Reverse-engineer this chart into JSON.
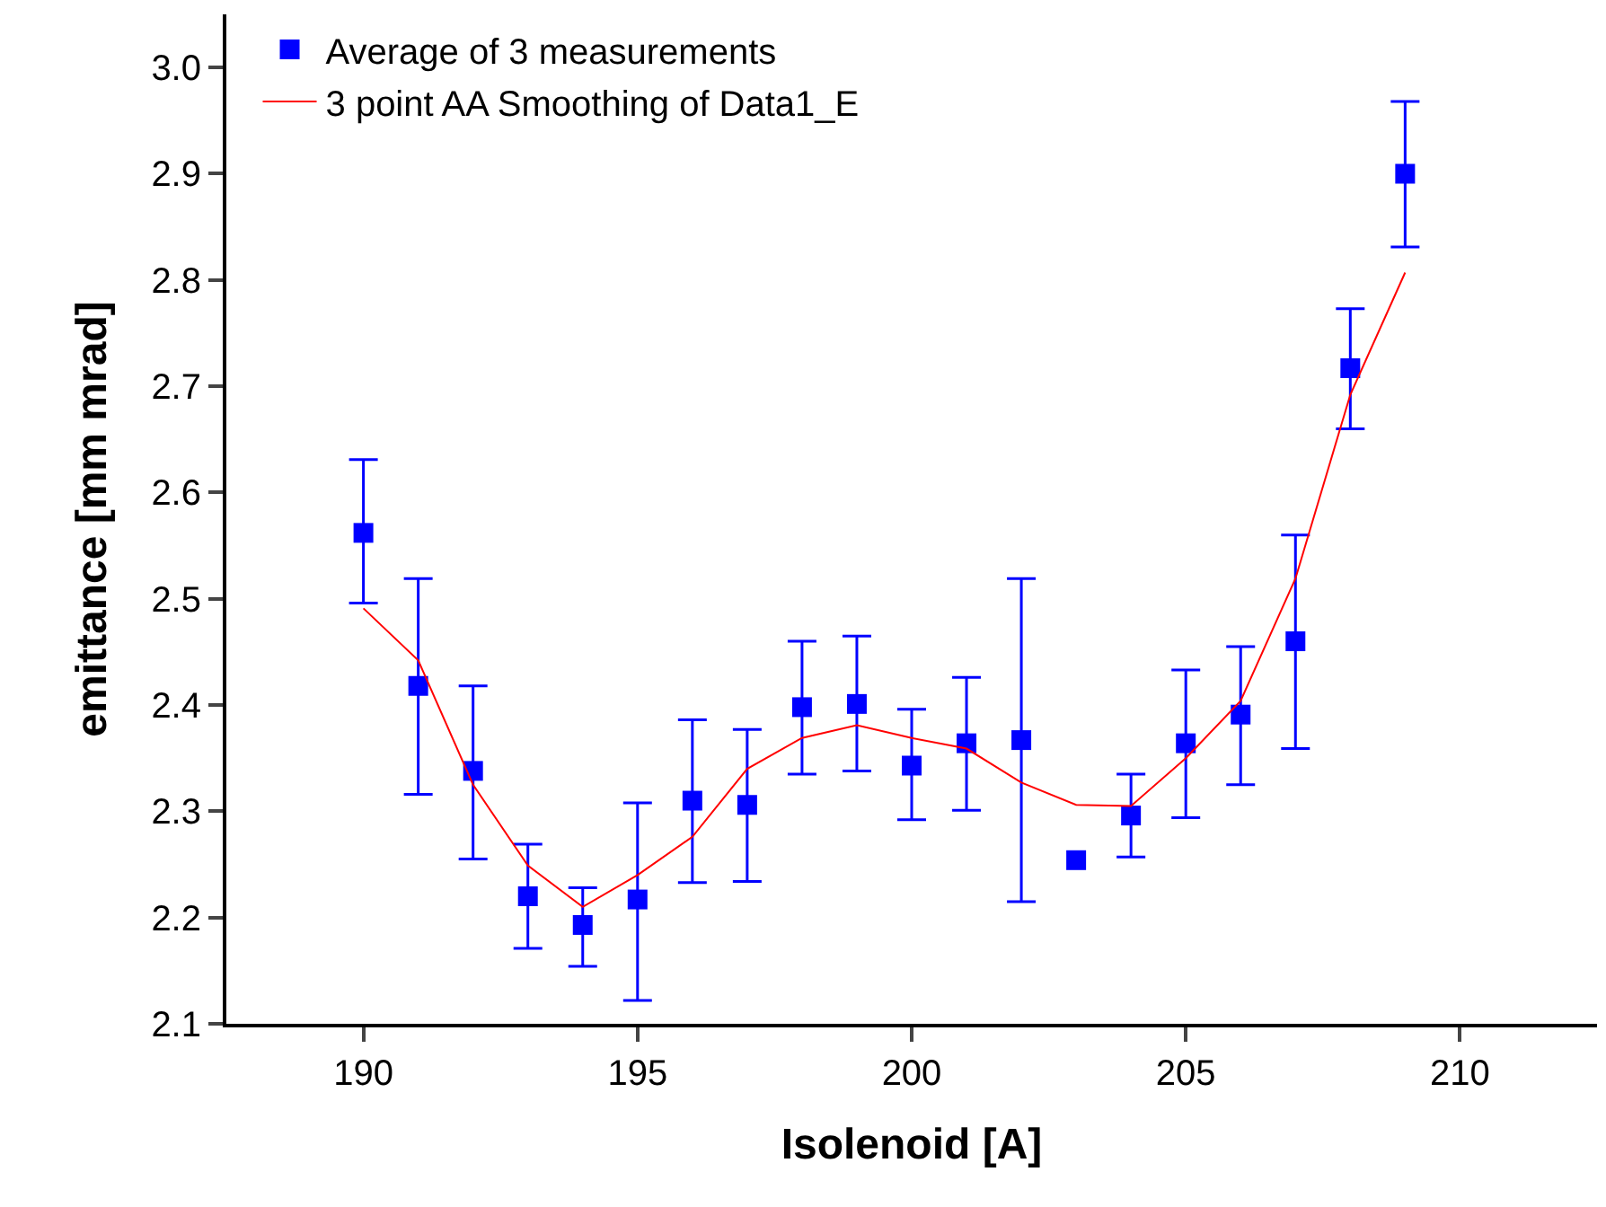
{
  "chart_data": {
    "type": "scatter",
    "xlabel": "Isolenoid [A]",
    "ylabel": "emittance [mm mrad]",
    "x": [
      190,
      191,
      192,
      193,
      194,
      195,
      196,
      197,
      198,
      199,
      200,
      201,
      202,
      203,
      204,
      205,
      206,
      207,
      208,
      209
    ],
    "series": [
      {
        "name": "Average of 3 measurements",
        "marker": "square",
        "color": "#0000ff",
        "values": [
          2.562,
          2.418,
          2.338,
          2.22,
          2.193,
          2.217,
          2.31,
          2.306,
          2.398,
          2.401,
          2.343,
          2.364,
          2.367,
          2.254,
          2.296,
          2.364,
          2.391,
          2.46,
          2.717,
          2.9
        ],
        "errors": [
          [
            2.496,
            2.631
          ],
          [
            2.316,
            2.519
          ],
          [
            2.255,
            2.418
          ],
          [
            2.171,
            2.269
          ],
          [
            2.154,
            2.228
          ],
          [
            2.122,
            2.308
          ],
          [
            2.233,
            2.386
          ],
          [
            2.234,
            2.377
          ],
          [
            2.335,
            2.46
          ],
          [
            2.338,
            2.465
          ],
          [
            2.292,
            2.396
          ],
          [
            2.301,
            2.426
          ],
          [
            2.215,
            2.519
          ],
          null,
          [
            2.257,
            2.335
          ],
          [
            2.294,
            2.433
          ],
          [
            2.325,
            2.455
          ],
          [
            2.359,
            2.56
          ],
          [
            2.66,
            2.773
          ],
          [
            2.831,
            2.968
          ]
        ]
      },
      {
        "name": "3 point AA Smoothing of Data1_E",
        "type": "line",
        "marker": "none",
        "color": "#ff0000",
        "values": [
          2.491,
          2.442,
          2.325,
          2.249,
          2.21,
          2.24,
          2.276,
          2.34,
          2.369,
          2.381,
          2.369,
          2.359,
          2.327,
          2.306,
          2.305,
          2.35,
          2.404,
          2.519,
          2.692,
          2.807
        ]
      }
    ],
    "xlim": [
      187.5,
      212.5
    ],
    "xticks": [
      190,
      195,
      200,
      205,
      210
    ],
    "ylim": [
      2.1,
      3.05
    ],
    "yticks": [
      2.1,
      2.2,
      2.3,
      2.4,
      2.5,
      2.6,
      2.7,
      2.8,
      2.9,
      {
        "value": 3,
        "label": "3.0"
      }
    ],
    "grid": false,
    "legend": "top left"
  }
}
